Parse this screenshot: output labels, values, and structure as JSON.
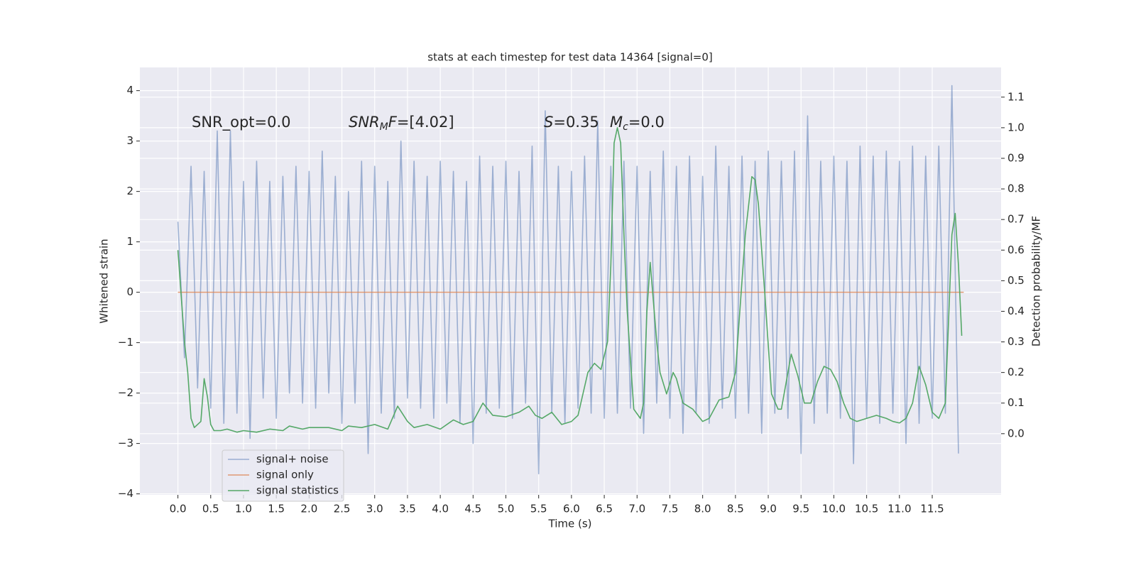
{
  "chart_data": {
    "type": "line",
    "title": "stats at each timestep for test data 14364 [signal=0]",
    "xlabel": "Time (s)",
    "ylabel": "Whitened strain",
    "y2label": "Detection probability/MF",
    "grid": true,
    "legend": "lower left",
    "annotations": [
      [
        {
          "text": "SNR_opt=0.0",
          "style": "normal"
        }
      ],
      [
        {
          "text": "SNR",
          "style": "italic"
        },
        {
          "text": "M",
          "style": "italic-sub"
        },
        {
          "text": "F",
          "style": "italic"
        },
        {
          "text": "=[4.02]",
          "style": "normal"
        }
      ],
      [
        {
          "text": "S",
          "style": "italic"
        },
        {
          "text": "=0.35",
          "style": "normal"
        }
      ],
      [
        {
          "text": "M",
          "style": "italic"
        },
        {
          "text": "c",
          "style": "italic-sub"
        },
        {
          "text": "=0.0",
          "style": "normal"
        }
      ]
    ],
    "xlim": [
      -0.58,
      12.55
    ],
    "xticks": [
      {
        "value": 0,
        "label": "0.0"
      },
      0.5,
      {
        "value": 1,
        "label": "1.0"
      },
      1.5,
      {
        "value": 2,
        "label": "2.0"
      },
      2.5,
      {
        "value": 3,
        "label": "3.0"
      },
      3.5,
      {
        "value": 4,
        "label": "4.0"
      },
      4.5,
      {
        "value": 5,
        "label": "5.0"
      },
      5.5,
      {
        "value": 6,
        "label": "6.0"
      },
      6.5,
      {
        "value": 7,
        "label": "7.0"
      },
      7.5,
      {
        "value": 8,
        "label": "8.0"
      },
      8.5,
      {
        "value": 9,
        "label": "9.0"
      },
      9.5,
      {
        "value": 10,
        "label": "10.0"
      },
      10.5,
      {
        "value": 11,
        "label": "11.0"
      },
      11.5
    ],
    "ylim": [
      -4.02,
      4.46
    ],
    "yticks": [
      {
        "value": -4,
        "label": "−4"
      },
      {
        "value": -3,
        "label": "−3"
      },
      {
        "value": -2,
        "label": "−2"
      },
      {
        "value": -1,
        "label": "−1"
      },
      0,
      1,
      2,
      3,
      4
    ],
    "y2lim": [
      -0.2,
      1.197
    ],
    "y2ticks": [
      {
        "value": 0,
        "label": "0.0"
      },
      0.1,
      0.2,
      0.3,
      0.4,
      0.5,
      0.6,
      0.7,
      0.8,
      0.9,
      {
        "value": 1,
        "label": "1.0"
      },
      1.1
    ],
    "series": [
      {
        "name": "signal+ noise",
        "color": "#4c72b0",
        "opacity": 0.5,
        "x": [
          0,
          0.1,
          0.2,
          0.3,
          0.4,
          0.5,
          0.6,
          0.7,
          0.8,
          0.9,
          1,
          1.1,
          1.2,
          1.3,
          1.4,
          1.5,
          1.6,
          1.7,
          1.8,
          1.9,
          2,
          2.1,
          2.2,
          2.3,
          2.4,
          2.5,
          2.6,
          2.7,
          2.8,
          2.9,
          3,
          3.1,
          3.2,
          3.3,
          3.4,
          3.5,
          3.6,
          3.7,
          3.8,
          3.9,
          4,
          4.1,
          4.2,
          4.3,
          4.4,
          4.5,
          4.6,
          4.7,
          4.8,
          4.9,
          5,
          5.1,
          5.2,
          5.3,
          5.4,
          5.5,
          5.6,
          5.7,
          5.8,
          5.9,
          6,
          6.1,
          6.2,
          6.3,
          6.4,
          6.5,
          6.6,
          6.7,
          6.8,
          6.9,
          7,
          7.1,
          7.2,
          7.3,
          7.4,
          7.5,
          7.6,
          7.7,
          7.8,
          7.9,
          8,
          8.1,
          8.2,
          8.3,
          8.4,
          8.5,
          8.6,
          8.7,
          8.8,
          8.9,
          9,
          9.1,
          9.2,
          9.3,
          9.4,
          9.5,
          9.6,
          9.7,
          9.8,
          9.9,
          10,
          10.1,
          10.2,
          10.3,
          10.4,
          10.5,
          10.6,
          10.7,
          10.8,
          10.9,
          11,
          11.1,
          11.2,
          11.3,
          11.4,
          11.5,
          11.6,
          11.7,
          11.8,
          11.9
        ],
        "values": [
          1.4,
          -1.3,
          2.5,
          -1.9,
          2.4,
          -2.3,
          3.2,
          -2.6,
          3.2,
          -2.4,
          2.2,
          -2.9,
          2.6,
          -2.1,
          2.2,
          -2.5,
          2.3,
          -2.0,
          2.5,
          -2.2,
          2.4,
          -2.3,
          2.8,
          -2.0,
          2.3,
          -2.6,
          2.0,
          -2.2,
          2.6,
          -3.2,
          2.5,
          -2.4,
          2.2,
          -2.5,
          3.0,
          -2.1,
          2.6,
          -2.3,
          2.3,
          -2.5,
          2.6,
          -2.2,
          2.4,
          -2.6,
          2.2,
          -3.0,
          2.7,
          -2.4,
          2.5,
          -2.3,
          2.6,
          -2.5,
          2.4,
          -2.2,
          2.9,
          -3.6,
          3.6,
          -2.4,
          2.5,
          -2.6,
          2.4,
          -2.3,
          2.7,
          -2.4,
          3.4,
          -2.5,
          2.5,
          -2.4,
          2.6,
          -2.3,
          2.5,
          -2.8,
          2.4,
          -2.2,
          2.8,
          -2.5,
          2.5,
          -2.8,
          2.7,
          -2.4,
          2.3,
          -2.6,
          2.9,
          -2.3,
          2.5,
          -2.5,
          2.7,
          -2.4,
          2.6,
          -2.8,
          2.8,
          -2.4,
          2.6,
          -2.5,
          2.8,
          -3.2,
          3.5,
          -2.6,
          2.6,
          -2.4,
          2.7,
          -2.5,
          2.6,
          -3.4,
          2.9,
          -2.5,
          2.7,
          -2.6,
          2.8,
          -2.4,
          2.6,
          -3.0,
          2.9,
          -2.6,
          2.7,
          -2.5,
          2.9,
          -2.4,
          4.1,
          -3.2
        ]
      },
      {
        "name": "signal only",
        "color": "#dd8452",
        "opacity": 0.8,
        "x": [
          0,
          11.98
        ],
        "values": [
          0,
          0
        ]
      },
      {
        "name": "signal statistics",
        "color": "#55a868",
        "opacity": 1,
        "axis": "y2",
        "x": [
          0,
          0.1,
          0.15,
          0.2,
          0.25,
          0.35,
          0.4,
          0.45,
          0.5,
          0.55,
          0.65,
          0.75,
          0.9,
          1,
          1.2,
          1.4,
          1.6,
          1.7,
          1.9,
          2,
          2.3,
          2.5,
          2.6,
          2.8,
          3,
          3.2,
          3.35,
          3.5,
          3.6,
          3.8,
          4,
          4.2,
          4.35,
          4.5,
          4.65,
          4.8,
          5,
          5.2,
          5.35,
          5.45,
          5.55,
          5.7,
          5.85,
          6,
          6.1,
          6.25,
          6.35,
          6.45,
          6.55,
          6.6,
          6.65,
          6.7,
          6.75,
          6.8,
          6.85,
          6.95,
          7.05,
          7.1,
          7.15,
          7.2,
          7.3,
          7.35,
          7.45,
          7.55,
          7.6,
          7.7,
          7.85,
          8,
          8.1,
          8.25,
          8.4,
          8.5,
          8.55,
          8.65,
          8.75,
          8.8,
          8.85,
          8.95,
          9.05,
          9.15,
          9.2,
          9.3,
          9.35,
          9.45,
          9.55,
          9.65,
          9.75,
          9.85,
          9.95,
          10.05,
          10.15,
          10.25,
          10.35,
          10.5,
          10.65,
          10.8,
          10.9,
          11,
          11.1,
          11.2,
          11.3,
          11.4,
          11.5,
          11.6,
          11.7,
          11.8,
          11.85,
          11.9,
          11.95
        ],
        "values": [
          0.6,
          0.3,
          0.2,
          0.05,
          0.02,
          0.04,
          0.18,
          0.12,
          0.03,
          0.01,
          0.01,
          0.015,
          0.005,
          0.01,
          0.005,
          0.015,
          0.01,
          0.025,
          0.015,
          0.02,
          0.02,
          0.01,
          0.025,
          0.02,
          0.03,
          0.015,
          0.09,
          0.04,
          0.02,
          0.03,
          0.015,
          0.045,
          0.03,
          0.04,
          0.1,
          0.06,
          0.055,
          0.07,
          0.09,
          0.06,
          0.05,
          0.07,
          0.03,
          0.04,
          0.06,
          0.2,
          0.23,
          0.21,
          0.3,
          0.55,
          0.95,
          1.0,
          0.95,
          0.65,
          0.4,
          0.08,
          0.05,
          0.1,
          0.4,
          0.56,
          0.3,
          0.2,
          0.13,
          0.2,
          0.18,
          0.1,
          0.08,
          0.04,
          0.05,
          0.11,
          0.12,
          0.2,
          0.35,
          0.65,
          0.84,
          0.83,
          0.75,
          0.45,
          0.13,
          0.08,
          0.08,
          0.2,
          0.26,
          0.19,
          0.1,
          0.1,
          0.17,
          0.22,
          0.21,
          0.17,
          0.1,
          0.05,
          0.04,
          0.05,
          0.06,
          0.05,
          0.04,
          0.035,
          0.05,
          0.1,
          0.22,
          0.16,
          0.07,
          0.05,
          0.1,
          0.65,
          0.72,
          0.55,
          0.32
        ]
      }
    ]
  }
}
